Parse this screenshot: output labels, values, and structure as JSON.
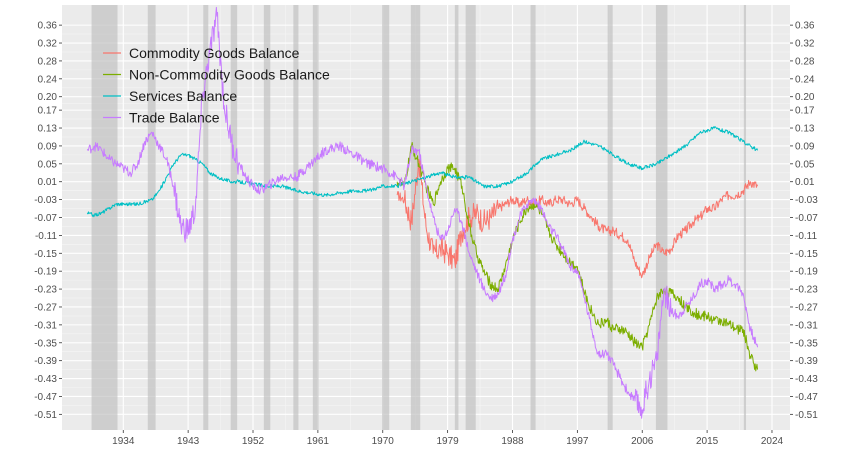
{
  "chart_data": {
    "type": "line",
    "title": "",
    "xlabel": "",
    "ylabel": "",
    "xlim": [
      1925.5,
      2026.5
    ],
    "ylim": [
      -0.545,
      0.405
    ],
    "x_ticks": [
      1934,
      1943,
      1952,
      1961,
      1970,
      1979,
      1988,
      1997,
      2006,
      2015,
      2024
    ],
    "y_ticks": [
      -0.51,
      -0.47,
      -0.43,
      -0.39,
      -0.35,
      -0.31,
      -0.27,
      -0.23,
      -0.19,
      -0.15,
      -0.11,
      -0.07,
      -0.03,
      0.01,
      0.05,
      0.09,
      0.13,
      0.17,
      0.2,
      0.24,
      0.28,
      0.32,
      0.36
    ],
    "y_tick_labels": [
      "-0.51",
      "-0.47",
      "-0.43",
      "-0.39",
      "-0.35",
      "-0.31",
      "-0.27",
      "-0.23",
      "-0.19",
      "-0.15",
      "-0.11",
      "-0.07",
      "-0.03",
      "0.01",
      "0.05",
      "0.09",
      "0.13",
      "0.17",
      "0.20",
      "0.24",
      "0.28",
      "0.32",
      "0.36"
    ],
    "grid": true,
    "y_axis_both_sides": true,
    "legend_position": "top-left",
    "recession_shading": [
      [
        1929.6,
        1933.2
      ],
      [
        1937.4,
        1938.5
      ],
      [
        1945.1,
        1945.8
      ],
      [
        1948.9,
        1949.8
      ],
      [
        1953.5,
        1954.4
      ],
      [
        1957.6,
        1958.3
      ],
      [
        1960.3,
        1961.1
      ],
      [
        1969.9,
        1970.9
      ],
      [
        1973.9,
        1975.2
      ],
      [
        1980.0,
        1980.5
      ],
      [
        1981.5,
        1982.9
      ],
      [
        1990.5,
        1991.2
      ],
      [
        2001.2,
        2001.9
      ],
      [
        2007.9,
        2009.5
      ],
      [
        2020.1,
        2020.4
      ]
    ],
    "series": [
      {
        "name": "Commodity Goods Balance",
        "color": "#F8766D",
        "x": [
          1972,
          1973,
          1974,
          1975,
          1976,
          1977,
          1978,
          1979,
          1980,
          1981,
          1982,
          1983,
          1984,
          1985,
          1986,
          1987,
          1988,
          1989,
          1990,
          1991,
          1992,
          1993,
          1994,
          1995,
          1996,
          1997,
          1998,
          1999,
          2000,
          2001,
          2002,
          2003,
          2004,
          2005,
          2006,
          2007,
          2008,
          2009,
          2010,
          2011,
          2012,
          2013,
          2014,
          2015,
          2016,
          2017,
          2018,
          2019,
          2020,
          2021,
          2022
        ],
        "y": [
          -0.02,
          -0.03,
          -0.08,
          0.06,
          -0.09,
          -0.15,
          -0.14,
          -0.15,
          -0.17,
          -0.1,
          -0.07,
          -0.06,
          -0.08,
          -0.07,
          -0.05,
          -0.04,
          -0.03,
          -0.04,
          -0.03,
          -0.04,
          -0.03,
          -0.04,
          -0.03,
          -0.03,
          -0.04,
          -0.03,
          -0.05,
          -0.07,
          -0.09,
          -0.1,
          -0.1,
          -0.11,
          -0.12,
          -0.17,
          -0.2,
          -0.16,
          -0.13,
          -0.15,
          -0.14,
          -0.11,
          -0.1,
          -0.08,
          -0.07,
          -0.05,
          -0.05,
          -0.03,
          -0.02,
          -0.02,
          -0.01,
          0.01,
          0.0
        ]
      },
      {
        "name": "Non-Commodity Goods Balance",
        "color": "#7CAE00",
        "x": [
          1972,
          1973,
          1974,
          1975,
          1976,
          1977,
          1978,
          1979,
          1980,
          1981,
          1982,
          1983,
          1984,
          1985,
          1986,
          1987,
          1988,
          1989,
          1990,
          1991,
          1992,
          1993,
          1994,
          1995,
          1996,
          1997,
          1998,
          1999,
          2000,
          2001,
          2002,
          2003,
          2004,
          2005,
          2006,
          2007,
          2008,
          2009,
          2010,
          2011,
          2012,
          2013,
          2014,
          2015,
          2016,
          2017,
          2018,
          2019,
          2020,
          2021,
          2022
        ],
        "y": [
          0.01,
          0.0,
          0.09,
          0.05,
          0.0,
          -0.04,
          0.01,
          0.04,
          0.04,
          0.0,
          -0.09,
          -0.15,
          -0.19,
          -0.22,
          -0.23,
          -0.18,
          -0.12,
          -0.08,
          -0.05,
          -0.04,
          -0.06,
          -0.1,
          -0.13,
          -0.15,
          -0.17,
          -0.18,
          -0.24,
          -0.28,
          -0.31,
          -0.3,
          -0.32,
          -0.32,
          -0.33,
          -0.35,
          -0.36,
          -0.31,
          -0.25,
          -0.23,
          -0.24,
          -0.25,
          -0.27,
          -0.28,
          -0.29,
          -0.29,
          -0.3,
          -0.3,
          -0.31,
          -0.32,
          -0.32,
          -0.38,
          -0.41
        ]
      },
      {
        "name": "Services Balance",
        "color": "#00BFC4",
        "x": [
          1929,
          1930,
          1931,
          1932,
          1933,
          1934,
          1935,
          1936,
          1937,
          1938,
          1939,
          1940,
          1941,
          1942,
          1943,
          1944,
          1945,
          1946,
          1947,
          1948,
          1949,
          1950,
          1952,
          1954,
          1956,
          1958,
          1960,
          1962,
          1964,
          1966,
          1968,
          1970,
          1972,
          1974,
          1976,
          1978,
          1980,
          1982,
          1984,
          1986,
          1988,
          1990,
          1992,
          1994,
          1996,
          1998,
          2000,
          2002,
          2004,
          2006,
          2008,
          2010,
          2012,
          2014,
          2016,
          2018,
          2020,
          2021,
          2022
        ],
        "y": [
          -0.06,
          -0.065,
          -0.06,
          -0.05,
          -0.04,
          -0.04,
          -0.04,
          -0.04,
          -0.035,
          -0.03,
          -0.01,
          0.02,
          0.05,
          0.07,
          0.07,
          0.06,
          0.05,
          0.03,
          0.02,
          0.015,
          0.01,
          0.01,
          0.005,
          0.0,
          0.0,
          -0.01,
          -0.015,
          -0.02,
          -0.015,
          -0.01,
          -0.01,
          0.0,
          0.0,
          0.01,
          0.02,
          0.03,
          0.02,
          0.02,
          0.0,
          0.0,
          0.01,
          0.03,
          0.06,
          0.07,
          0.08,
          0.1,
          0.09,
          0.07,
          0.05,
          0.04,
          0.05,
          0.07,
          0.09,
          0.12,
          0.13,
          0.12,
          0.1,
          0.09,
          0.08
        ]
      },
      {
        "name": "Trade Balance",
        "color": "#C77CFF",
        "x": [
          1929,
          1930,
          1931,
          1932,
          1933,
          1934,
          1935,
          1936,
          1937,
          1938,
          1939,
          1940,
          1941,
          1942,
          1943,
          1944,
          1945,
          1946,
          1947,
          1948,
          1949,
          1950,
          1951,
          1952,
          1953,
          1954,
          1956,
          1958,
          1960,
          1962,
          1964,
          1966,
          1968,
          1970,
          1972,
          1973,
          1974,
          1975,
          1976,
          1977,
          1978,
          1979,
          1980,
          1981,
          1982,
          1983,
          1984,
          1985,
          1986,
          1987,
          1988,
          1989,
          1990,
          1991,
          1992,
          1993,
          1994,
          1995,
          1996,
          1997,
          1998,
          1999,
          2000,
          2001,
          2002,
          2003,
          2004,
          2005,
          2006,
          2007,
          2008,
          2009,
          2010,
          2011,
          2012,
          2013,
          2014,
          2015,
          2016,
          2017,
          2018,
          2019,
          2020,
          2021,
          2022
        ],
        "y": [
          0.08,
          0.09,
          0.08,
          0.06,
          0.05,
          0.04,
          0.03,
          0.05,
          0.1,
          0.12,
          0.09,
          0.06,
          0.0,
          -0.09,
          -0.1,
          -0.05,
          0.2,
          0.3,
          0.38,
          0.18,
          0.1,
          0.05,
          0.02,
          0.0,
          -0.01,
          0.0,
          0.02,
          0.02,
          0.05,
          0.08,
          0.09,
          0.07,
          0.05,
          0.04,
          0.02,
          0.0,
          0.08,
          0.08,
          0.0,
          -0.07,
          -0.12,
          -0.1,
          -0.05,
          -0.08,
          -0.15,
          -0.19,
          -0.23,
          -0.25,
          -0.24,
          -0.2,
          -0.12,
          -0.07,
          -0.04,
          -0.03,
          -0.05,
          -0.09,
          -0.11,
          -0.14,
          -0.18,
          -0.19,
          -0.25,
          -0.32,
          -0.38,
          -0.37,
          -0.4,
          -0.43,
          -0.46,
          -0.48,
          -0.5,
          -0.43,
          -0.39,
          -0.23,
          -0.28,
          -0.29,
          -0.27,
          -0.25,
          -0.22,
          -0.21,
          -0.23,
          -0.22,
          -0.21,
          -0.22,
          -0.24,
          -0.32,
          -0.36
        ]
      }
    ]
  }
}
